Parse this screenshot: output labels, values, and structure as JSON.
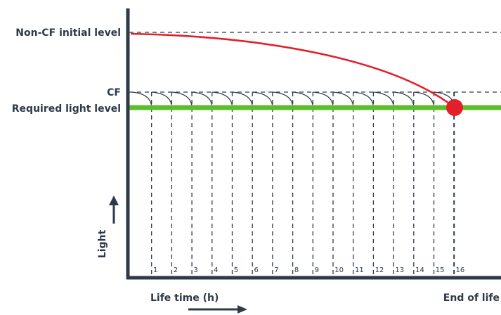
{
  "chart_data": {
    "type": "line",
    "title": "",
    "xlabel": "Life time (h)",
    "ylabel": "Light",
    "end_label": "End of life",
    "levels": {
      "non_cf_initial": "Non-CF initial level",
      "cf": "CF",
      "required": "Required light level"
    },
    "x_ticks": [
      "1",
      "2",
      "3",
      "4",
      "5",
      "6",
      "7",
      "8",
      "9",
      "10",
      "11",
      "12",
      "13",
      "14",
      "15",
      "16"
    ],
    "maintenance_cycles": 16,
    "series": [
      {
        "name": "Non-CF initial level",
        "style": "dashed"
      },
      {
        "name": "CF",
        "style": "dashed sawtooth"
      },
      {
        "name": "Required light level",
        "style": "solid"
      }
    ],
    "colors": {
      "axis": "#2f3a48",
      "decay_curve": "#e3202a",
      "required_level": "#5cbf2a",
      "end_marker": "#e3202a",
      "dashes": "#2f3a48"
    },
    "grid": false
  }
}
